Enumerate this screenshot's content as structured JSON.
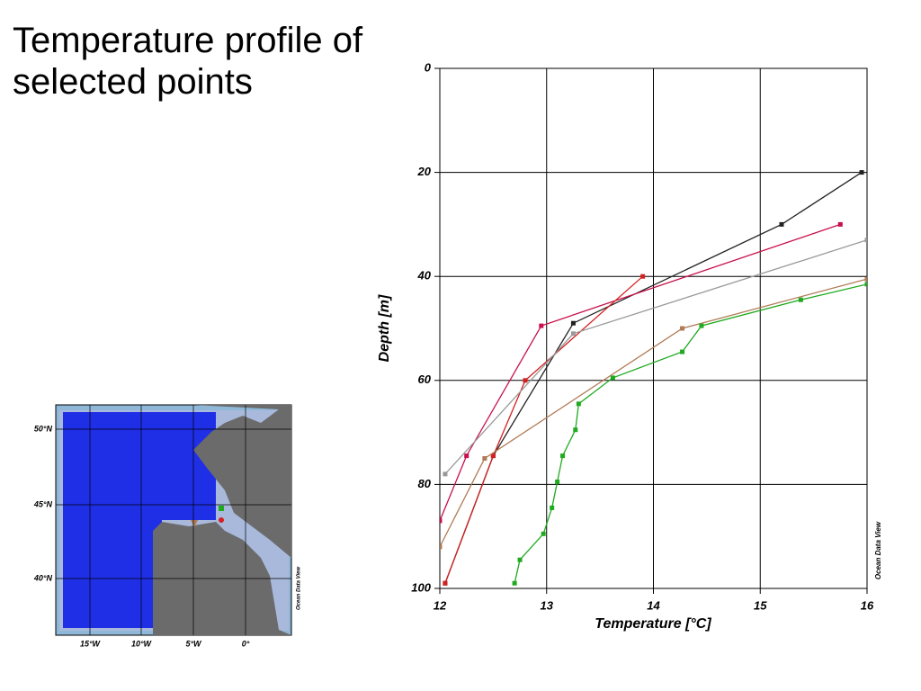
{
  "chart_data": {
    "type": "line",
    "title": "Temperature profile of selected points",
    "x_label": "Temperature [°C]",
    "y_label": "Depth [m]",
    "annotation": "Ocean Data View",
    "xlim": [
      12,
      16
    ],
    "xticks": [
      12,
      13,
      14,
      15,
      16
    ],
    "ylim": [
      0,
      100
    ],
    "yticks": [
      0,
      20,
      40,
      60,
      80,
      100
    ],
    "y_inverted": true,
    "grid": true,
    "series": [
      {
        "color": "#222222",
        "x": [
          15.95,
          15.2,
          13.25,
          12.5,
          12.05
        ],
        "values": [
          20,
          30,
          49,
          74.5,
          99
        ]
      },
      {
        "color": "#c8104a",
        "x": [
          15.75,
          12.95,
          12.25,
          12
        ],
        "values": [
          30,
          49.5,
          74.5,
          87
        ]
      },
      {
        "color": "#d42020",
        "x": [
          13.9,
          12.8,
          12.5,
          12.05
        ],
        "values": [
          40,
          60,
          74.5,
          99
        ]
      },
      {
        "color": "#999999",
        "x": [
          16,
          13.25,
          12.05
        ],
        "values": [
          33,
          51,
          78
        ]
      },
      {
        "color": "#b07a55",
        "x": [
          16,
          14.27,
          12.42,
          12
        ],
        "values": [
          40.5,
          50,
          75,
          92
        ]
      },
      {
        "color": "#1faa1f",
        "x": [
          16,
          15.38,
          14.45,
          14.27,
          13.62,
          13.3,
          13.27,
          13.15,
          13.1,
          13.05,
          12.97,
          12.75,
          12.7
        ],
        "values": [
          41.5,
          44.5,
          49.5,
          54.5,
          59.5,
          64.5,
          69.5,
          74.5,
          79.5,
          84.5,
          89.5,
          94.5,
          99
        ]
      }
    ]
  },
  "map": {
    "lat_labels": [
      "50°N",
      "45°N",
      "40°N"
    ],
    "lon_labels": [
      "15°W",
      "10°W",
      "5°W",
      "0°"
    ],
    "credit": "Ocean Data View"
  }
}
